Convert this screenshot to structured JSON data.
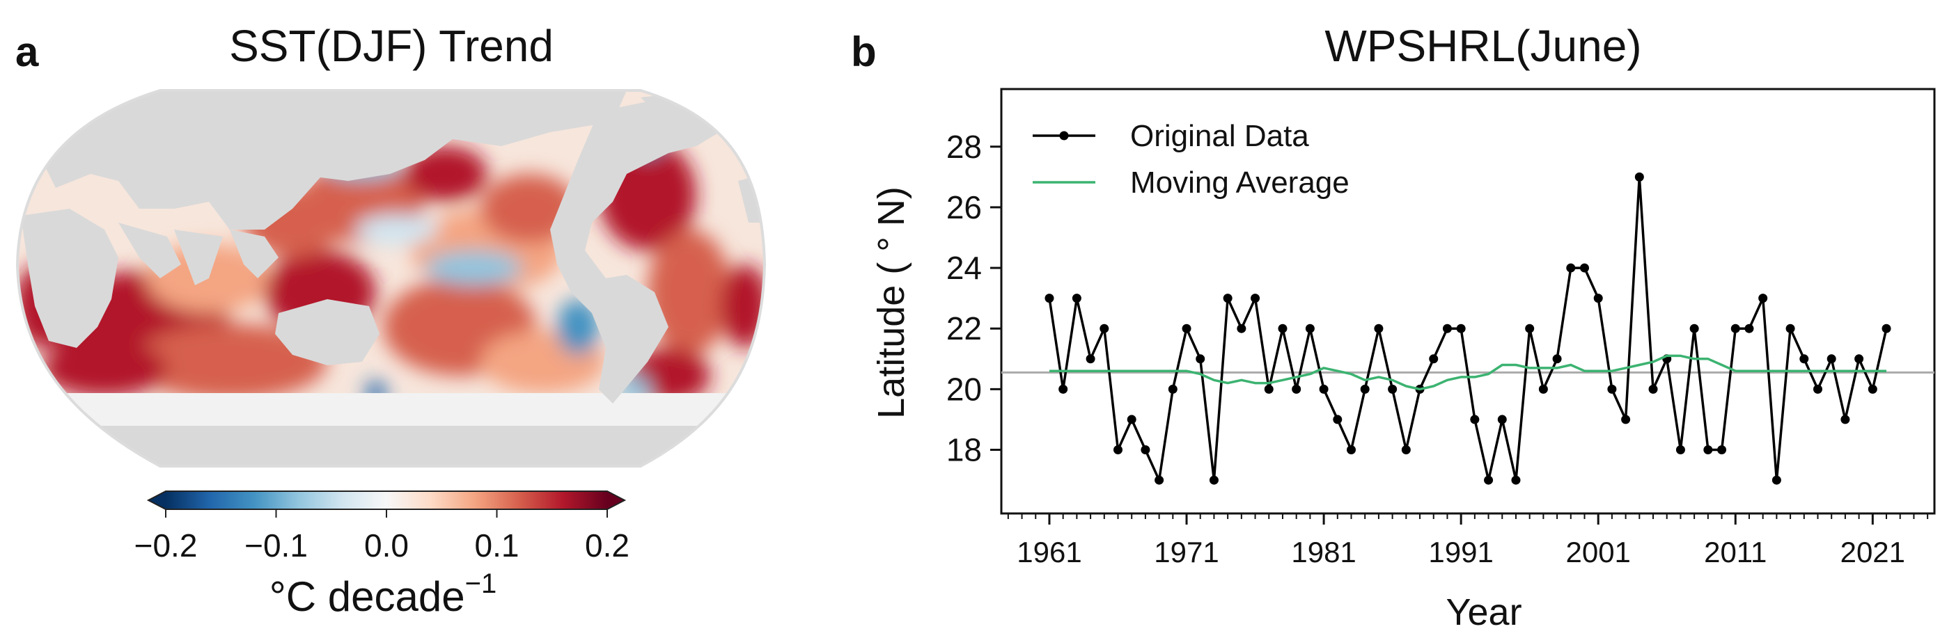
{
  "panel_a": {
    "letter": "a",
    "title": "SST(DJF) Trend",
    "colorbar": {
      "ticks": [
        "−0.2",
        "−0.1",
        "0.0",
        "0.1",
        "0.2"
      ],
      "tick_values": [
        -0.2,
        -0.1,
        0.0,
        0.1,
        0.2
      ],
      "range": [
        -0.2,
        0.2
      ],
      "label": "°C decade",
      "label_superscript": "−1",
      "colors": [
        "#053061",
        "#2166ac",
        "#4393c3",
        "#92c5de",
        "#d1e5f0",
        "#f7f7f7",
        "#fddbc7",
        "#f4a582",
        "#d6604d",
        "#b2182b",
        "#67001f"
      ]
    }
  },
  "panel_b": {
    "letter": "b"
  },
  "chart_data": {
    "type": "line",
    "title": "WPSHRL(June)",
    "xlabel": "Year",
    "ylabel": "Latitude ( ° N)",
    "xlim": [
      1957.5,
      2025.5
    ],
    "ylim": [
      15.9,
      29.9
    ],
    "xticks": [
      1961,
      1971,
      1981,
      1991,
      2001,
      2011,
      2021
    ],
    "yticks": [
      18,
      20,
      22,
      24,
      26,
      28
    ],
    "reference_line": 20.55,
    "legend": [
      "Original Data",
      "Moving Average"
    ],
    "legend_position": "top-left",
    "colors": {
      "original": "#000000",
      "moving": "#3cb371",
      "reference": "#aaaaaa"
    },
    "series": [
      {
        "name": "Original Data",
        "x": [
          1961,
          1962,
          1963,
          1964,
          1965,
          1966,
          1967,
          1968,
          1969,
          1970,
          1971,
          1972,
          1973,
          1974,
          1975,
          1976,
          1977,
          1978,
          1979,
          1980,
          1981,
          1982,
          1983,
          1984,
          1985,
          1986,
          1987,
          1988,
          1989,
          1990,
          1991,
          1992,
          1993,
          1994,
          1995,
          1996,
          1997,
          1998,
          1999,
          2000,
          2001,
          2002,
          2003,
          2004,
          2005,
          2006,
          2007,
          2008,
          2009,
          2010,
          2011,
          2012,
          2013,
          2014,
          2015,
          2016,
          2017,
          2018,
          2019,
          2020,
          2021,
          2022
        ],
        "values": [
          23,
          20,
          23,
          21,
          22,
          18,
          19,
          18,
          17,
          20,
          22,
          21,
          17,
          23,
          22,
          23,
          20,
          22,
          20,
          22,
          20,
          19,
          18,
          20,
          22,
          20,
          18,
          20,
          21,
          22,
          22,
          19,
          17,
          19,
          17,
          22,
          20,
          21,
          24,
          24,
          23,
          20,
          19,
          27,
          20,
          21,
          18,
          22,
          18,
          18,
          22,
          22,
          23,
          17,
          22,
          21,
          20,
          21,
          19,
          21,
          20,
          22
        ]
      },
      {
        "name": "Moving Average",
        "x": [
          1961,
          1962,
          1963,
          1964,
          1965,
          1966,
          1967,
          1968,
          1969,
          1970,
          1971,
          1972,
          1973,
          1974,
          1975,
          1976,
          1977,
          1978,
          1979,
          1980,
          1981,
          1982,
          1983,
          1984,
          1985,
          1986,
          1987,
          1988,
          1989,
          1990,
          1991,
          1992,
          1993,
          1994,
          1995,
          1996,
          1997,
          1998,
          1999,
          2000,
          2001,
          2002,
          2003,
          2004,
          2005,
          2006,
          2007,
          2008,
          2009,
          2010,
          2011,
          2012,
          2013,
          2014,
          2015,
          2016,
          2017,
          2018,
          2019,
          2020,
          2021,
          2022
        ],
        "values": [
          20.6,
          20.6,
          20.6,
          20.6,
          20.6,
          20.6,
          20.6,
          20.6,
          20.6,
          20.6,
          20.6,
          20.5,
          20.3,
          20.2,
          20.3,
          20.2,
          20.2,
          20.3,
          20.4,
          20.5,
          20.7,
          20.6,
          20.5,
          20.3,
          20.4,
          20.3,
          20.1,
          20.0,
          20.1,
          20.3,
          20.4,
          20.4,
          20.5,
          20.8,
          20.8,
          20.7,
          20.7,
          20.7,
          20.8,
          20.6,
          20.6,
          20.6,
          20.7,
          20.8,
          20.9,
          21.1,
          21.1,
          21.0,
          21.0,
          20.8,
          20.6,
          20.6,
          20.6,
          20.6,
          20.6,
          20.6,
          20.6,
          20.6,
          20.6,
          20.6,
          20.6,
          20.6
        ]
      }
    ]
  }
}
